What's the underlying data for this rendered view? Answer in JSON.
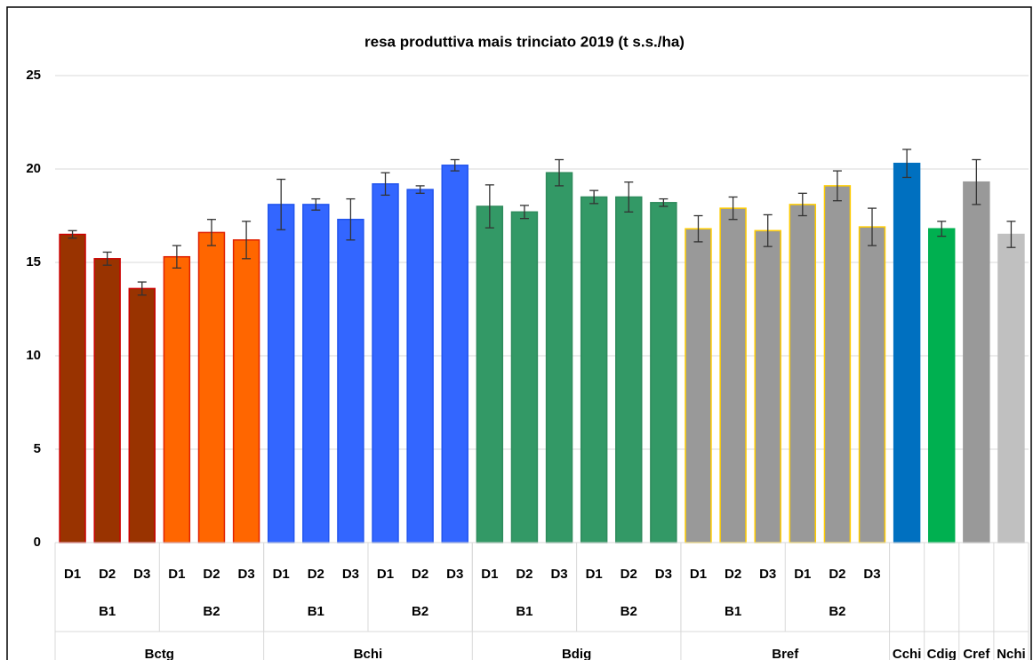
{
  "chart_data": {
    "type": "bar",
    "title": "resa produttiva mais trinciato 2019 (t s.s./ha)",
    "ylim": [
      0,
      25
    ],
    "yticks": [
      0,
      5,
      10,
      15,
      20,
      25
    ],
    "grid": true,
    "groups": [
      {
        "name": "Bctg",
        "subgroups": [
          {
            "name": "B1",
            "color": "#993300",
            "edge": "#cc0000",
            "categories": [
              "D1",
              "D2",
              "D3"
            ],
            "values": [
              16.5,
              15.2,
              13.6
            ],
            "errors": [
              0.2,
              0.35,
              0.35
            ]
          },
          {
            "name": "B2",
            "color": "#ff6600",
            "edge": "#e02000",
            "categories": [
              "D1",
              "D2",
              "D3"
            ],
            "values": [
              15.3,
              16.6,
              16.2
            ],
            "errors": [
              0.6,
              0.7,
              1.0
            ]
          }
        ]
      },
      {
        "name": "Bchi",
        "subgroups": [
          {
            "name": "B1",
            "color": "#3366ff",
            "edge": "#2255ee",
            "categories": [
              "D1",
              "D2",
              "D3"
            ],
            "values": [
              18.1,
              18.1,
              17.3
            ],
            "errors": [
              1.35,
              0.3,
              1.1
            ]
          },
          {
            "name": "B2",
            "color": "#3366ff",
            "edge": "#2255ee",
            "categories": [
              "D1",
              "D2",
              "D3"
            ],
            "values": [
              19.2,
              18.9,
              20.2
            ],
            "errors": [
              0.6,
              0.2,
              0.3
            ]
          }
        ]
      },
      {
        "name": "Bdig",
        "subgroups": [
          {
            "name": "B1",
            "color": "#339966",
            "edge": "#2e8b5c",
            "categories": [
              "D1",
              "D2",
              "D3"
            ],
            "values": [
              18.0,
              17.7,
              19.8
            ],
            "errors": [
              1.15,
              0.35,
              0.7
            ]
          },
          {
            "name": "B2",
            "color": "#339966",
            "edge": "#2e8b5c",
            "categories": [
              "D1",
              "D2",
              "D3"
            ],
            "values": [
              18.5,
              18.5,
              18.2
            ],
            "errors": [
              0.35,
              0.8,
              0.2
            ]
          }
        ]
      },
      {
        "name": "Bref",
        "subgroups": [
          {
            "name": "B1",
            "color": "#999999",
            "edge": "#ffcc00",
            "categories": [
              "D1",
              "D2",
              "D3"
            ],
            "values": [
              16.8,
              17.9,
              16.7
            ],
            "errors": [
              0.7,
              0.6,
              0.85
            ]
          },
          {
            "name": "B2",
            "color": "#999999",
            "edge": "#ffcc00",
            "categories": [
              "D1",
              "D2",
              "D3"
            ],
            "values": [
              18.1,
              19.1,
              16.9
            ],
            "errors": [
              0.6,
              0.8,
              1.0
            ]
          }
        ]
      },
      {
        "name": "Cchi",
        "color": "#0070c0",
        "values": [
          20.3
        ],
        "errors": [
          0.75
        ]
      },
      {
        "name": "Cdig",
        "color": "#00b050",
        "values": [
          16.8
        ],
        "errors": [
          0.4
        ]
      },
      {
        "name": "Cref",
        "color": "#999999",
        "values": [
          19.3
        ],
        "errors": [
          1.2
        ]
      },
      {
        "name": "Nchi",
        "color": "#c0c0c0",
        "values": [
          16.5
        ],
        "errors": [
          0.7
        ]
      }
    ]
  }
}
